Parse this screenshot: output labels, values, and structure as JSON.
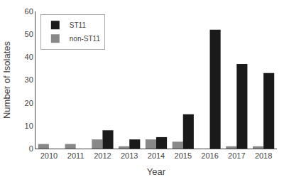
{
  "chart_data": {
    "type": "bar",
    "categories": [
      "2010",
      "2011",
      "2012",
      "2013",
      "2014",
      "2015",
      "2016",
      "2017",
      "2018"
    ],
    "series": [
      {
        "name": "non-ST11",
        "color": "#888888",
        "values": [
          2,
          2,
          4,
          1,
          4,
          3,
          0,
          1,
          1
        ]
      },
      {
        "name": "ST11",
        "color": "#1a1a1a",
        "values": [
          0,
          0,
          8,
          4,
          5,
          15,
          52,
          37,
          33
        ]
      }
    ],
    "xlabel": "Year",
    "ylabel": "Number of Isolates",
    "ylim": [
      0,
      60
    ],
    "yticks": [
      0,
      10,
      20,
      30,
      40,
      50,
      60
    ],
    "grid": false,
    "legend": "upper left"
  }
}
